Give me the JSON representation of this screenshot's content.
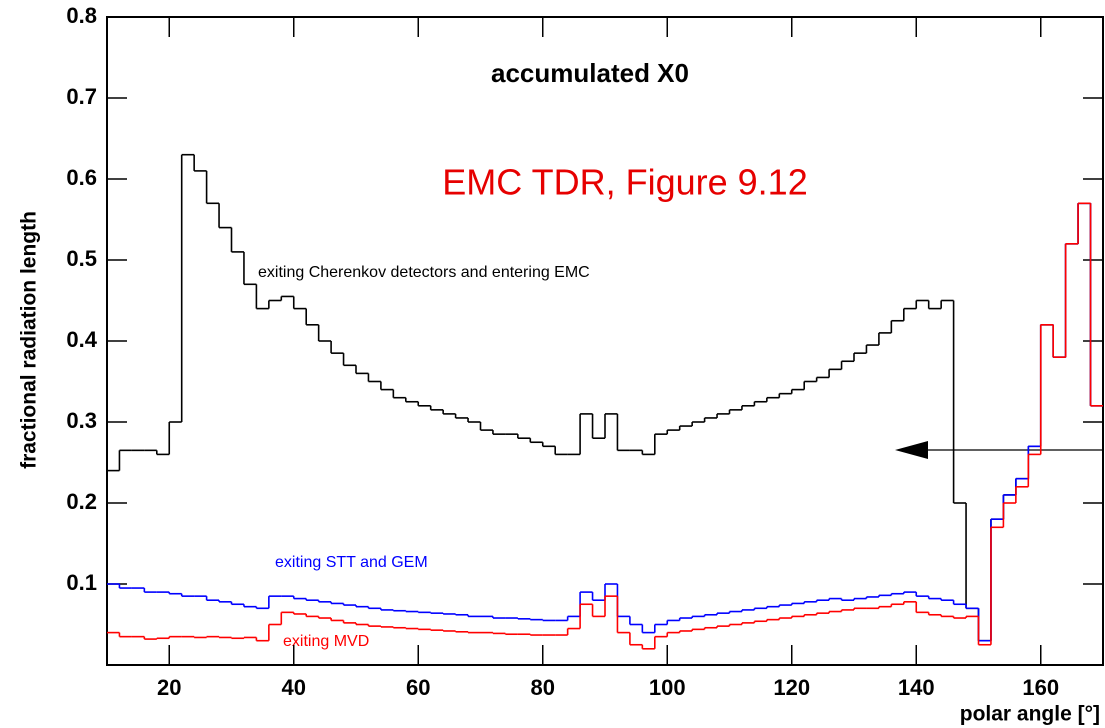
{
  "chart_data": {
    "type": "histogram-step",
    "title": "accumulated X0",
    "annotation": "EMC TDR, Figure 9.12",
    "annotation_color": "#e60000",
    "x_label": "polar angle [°]",
    "y_label": "fractional radiation length",
    "bins": [
      10,
      12,
      14,
      16,
      18,
      20,
      22,
      24,
      26,
      28,
      30,
      32,
      34,
      36,
      38,
      40,
      42,
      44,
      46,
      48,
      50,
      52,
      54,
      56,
      58,
      60,
      62,
      64,
      66,
      68,
      70,
      72,
      74,
      76,
      78,
      80,
      82,
      84,
      86,
      88,
      90,
      92,
      94,
      96,
      98,
      100,
      102,
      104,
      106,
      108,
      110,
      112,
      114,
      116,
      118,
      120,
      122,
      124,
      126,
      128,
      130,
      132,
      134,
      136,
      138,
      140,
      142,
      144,
      146,
      148,
      150,
      152,
      154,
      156,
      158,
      160,
      162,
      164,
      166,
      168,
      170
    ],
    "series": [
      {
        "name": "exiting Cherenkov detectors and entering EMC",
        "color": "#000000",
        "values": [
          0.24,
          0.265,
          0.265,
          0.265,
          0.26,
          0.3,
          0.63,
          0.61,
          0.57,
          0.54,
          0.51,
          0.47,
          0.44,
          0.45,
          0.455,
          0.44,
          0.42,
          0.4,
          0.385,
          0.37,
          0.36,
          0.35,
          0.34,
          0.33,
          0.325,
          0.32,
          0.315,
          0.31,
          0.305,
          0.3,
          0.29,
          0.285,
          0.285,
          0.28,
          0.275,
          0.27,
          0.26,
          0.26,
          0.31,
          0.28,
          0.31,
          0.265,
          0.265,
          0.26,
          0.285,
          0.29,
          0.295,
          0.3,
          0.305,
          0.31,
          0.315,
          0.32,
          0.325,
          0.33,
          0.335,
          0.34,
          0.35,
          0.355,
          0.365,
          0.375,
          0.385,
          0.395,
          0.41,
          0.425,
          0.44,
          0.45,
          0.44,
          0.45,
          0.2,
          0.07,
          0.03,
          0.18,
          0.21,
          0.23,
          0.27,
          0.42,
          0.38,
          0.52,
          0.57,
          0.32
        ]
      },
      {
        "name": "exiting STT and GEM",
        "color": "#0000ff",
        "values": [
          0.1,
          0.095,
          0.095,
          0.09,
          0.09,
          0.088,
          0.085,
          0.085,
          0.08,
          0.078,
          0.075,
          0.072,
          0.07,
          0.085,
          0.085,
          0.082,
          0.08,
          0.078,
          0.076,
          0.074,
          0.072,
          0.07,
          0.068,
          0.067,
          0.066,
          0.065,
          0.064,
          0.063,
          0.062,
          0.06,
          0.06,
          0.058,
          0.058,
          0.057,
          0.056,
          0.055,
          0.055,
          0.06,
          0.09,
          0.08,
          0.1,
          0.06,
          0.05,
          0.04,
          0.05,
          0.055,
          0.058,
          0.06,
          0.062,
          0.064,
          0.066,
          0.068,
          0.07,
          0.072,
          0.074,
          0.076,
          0.078,
          0.08,
          0.082,
          0.08,
          0.082,
          0.084,
          0.086,
          0.088,
          0.09,
          0.085,
          0.082,
          0.08,
          0.075,
          0.07,
          0.03,
          0.18,
          0.21,
          0.23,
          0.27,
          0.42,
          0.38,
          0.52,
          0.57,
          0.32
        ]
      },
      {
        "name": "exiting MVD",
        "color": "#ff0000",
        "values": [
          0.04,
          0.035,
          0.035,
          0.032,
          0.033,
          0.035,
          0.035,
          0.034,
          0.035,
          0.034,
          0.033,
          0.034,
          0.03,
          0.05,
          0.065,
          0.063,
          0.06,
          0.058,
          0.055,
          0.052,
          0.05,
          0.048,
          0.047,
          0.046,
          0.045,
          0.044,
          0.043,
          0.042,
          0.041,
          0.04,
          0.04,
          0.039,
          0.038,
          0.038,
          0.037,
          0.037,
          0.037,
          0.045,
          0.075,
          0.06,
          0.085,
          0.04,
          0.025,
          0.02,
          0.035,
          0.04,
          0.042,
          0.044,
          0.046,
          0.048,
          0.05,
          0.052,
          0.054,
          0.056,
          0.058,
          0.06,
          0.062,
          0.064,
          0.066,
          0.068,
          0.07,
          0.07,
          0.072,
          0.075,
          0.078,
          0.065,
          0.062,
          0.06,
          0.058,
          0.06,
          0.025,
          0.17,
          0.2,
          0.22,
          0.26,
          0.42,
          0.38,
          0.52,
          0.57,
          0.32
        ]
      }
    ],
    "xlim": [
      10,
      170
    ],
    "ylim": [
      0,
      0.8
    ],
    "xticks": [
      20,
      40,
      60,
      80,
      100,
      120,
      140,
      160
    ],
    "yticks": [
      0.1,
      0.2,
      0.3,
      0.4,
      0.5,
      0.6,
      0.7,
      0.8
    ]
  }
}
